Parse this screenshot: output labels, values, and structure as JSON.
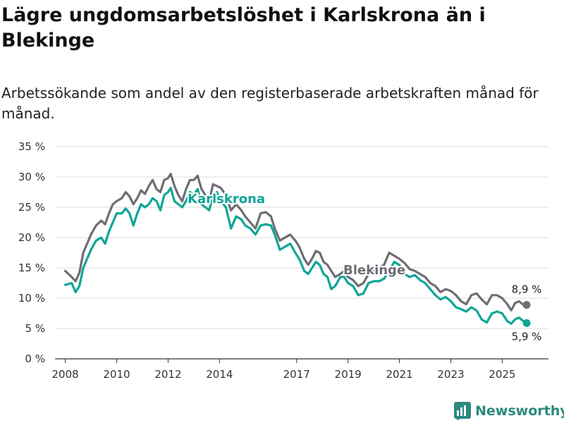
{
  "title": "Lägre ungdomsarbetslöshet i Karlskrona än i Blekinge",
  "subtitle": "Arbetssökande som andel av den registerbaserade arbetskraften månad för månad.",
  "brand": {
    "name": "Newsworthy",
    "color": "#2b8a7d"
  },
  "colors": {
    "karlskrona": "#0fa596",
    "blekinge": "#6e6d74",
    "grid": "#dcdcdc",
    "axis": "#333333"
  },
  "chart_data": {
    "type": "line",
    "title": "Lägre ungdomsarbetslöshet i Karlskrona än i Blekinge",
    "xlabel": "",
    "ylabel": "",
    "ylim": [
      0,
      35
    ],
    "yticks": [
      0,
      5,
      10,
      15,
      20,
      25,
      30,
      35
    ],
    "ytick_labels": [
      "0 %",
      "5 %",
      "10 %",
      "15 %",
      "20 %",
      "25 %",
      "30 %",
      "35 %"
    ],
    "xlim": [
      2007.6,
      2026.8
    ],
    "xticks": [
      2008,
      2010,
      2012,
      2014,
      2017,
      2019,
      2021,
      2023,
      2025
    ],
    "xtick_labels": [
      "2008",
      "2010",
      "2012",
      "2014",
      "2017",
      "2019",
      "2021",
      "2023",
      "2025"
    ],
    "grid": true,
    "series": [
      {
        "name": "Blekinge",
        "label": "Blekinge",
        "end_label": "8,9 %",
        "points": [
          [
            2008.0,
            14.5
          ],
          [
            2008.25,
            13.5
          ],
          [
            2008.4,
            12.8
          ],
          [
            2008.55,
            14.2
          ],
          [
            2008.7,
            17.5
          ],
          [
            2008.9,
            19.5
          ],
          [
            2009.0,
            20.5
          ],
          [
            2009.2,
            22.0
          ],
          [
            2009.4,
            22.8
          ],
          [
            2009.55,
            22.2
          ],
          [
            2009.7,
            24.0
          ],
          [
            2009.85,
            25.5
          ],
          [
            2010.0,
            26.0
          ],
          [
            2010.2,
            26.5
          ],
          [
            2010.35,
            27.5
          ],
          [
            2010.5,
            26.8
          ],
          [
            2010.65,
            25.5
          ],
          [
            2010.8,
            26.5
          ],
          [
            2010.95,
            27.8
          ],
          [
            2011.1,
            27.2
          ],
          [
            2011.25,
            28.5
          ],
          [
            2011.4,
            29.5
          ],
          [
            2011.55,
            28.0
          ],
          [
            2011.7,
            27.5
          ],
          [
            2011.85,
            29.5
          ],
          [
            2012.0,
            29.8
          ],
          [
            2012.1,
            30.5
          ],
          [
            2012.25,
            28.5
          ],
          [
            2012.4,
            27.0
          ],
          [
            2012.55,
            26.0
          ],
          [
            2012.7,
            28.0
          ],
          [
            2012.85,
            29.5
          ],
          [
            2013.0,
            29.5
          ],
          [
            2013.15,
            30.2
          ],
          [
            2013.3,
            28.0
          ],
          [
            2013.45,
            27.0
          ],
          [
            2013.6,
            26.0
          ],
          [
            2013.75,
            28.8
          ],
          [
            2013.9,
            28.5
          ],
          [
            2014.05,
            28.2
          ],
          [
            2014.25,
            27.0
          ],
          [
            2014.45,
            24.5
          ],
          [
            2014.65,
            25.5
          ],
          [
            2014.85,
            24.5
          ],
          [
            2015.0,
            23.5
          ],
          [
            2015.2,
            22.5
          ],
          [
            2015.4,
            21.5
          ],
          [
            2015.6,
            24.0
          ],
          [
            2015.8,
            24.2
          ],
          [
            2016.0,
            23.5
          ],
          [
            2016.15,
            21.5
          ],
          [
            2016.35,
            19.5
          ],
          [
            2016.55,
            20.0
          ],
          [
            2016.75,
            20.5
          ],
          [
            2016.95,
            19.5
          ],
          [
            2017.1,
            18.5
          ],
          [
            2017.3,
            16.5
          ],
          [
            2017.45,
            15.5
          ],
          [
            2017.6,
            16.5
          ],
          [
            2017.75,
            17.8
          ],
          [
            2017.9,
            17.5
          ],
          [
            2018.05,
            16.0
          ],
          [
            2018.2,
            15.5
          ],
          [
            2018.35,
            14.5
          ],
          [
            2018.5,
            13.5
          ],
          [
            2018.7,
            14.0
          ],
          [
            2018.85,
            14.5
          ],
          [
            2019.0,
            13.5
          ],
          [
            2019.2,
            13.0
          ],
          [
            2019.4,
            12.0
          ],
          [
            2019.6,
            12.5
          ],
          [
            2019.8,
            14.0
          ],
          [
            2020.0,
            14.5
          ],
          [
            2020.2,
            15.0
          ],
          [
            2020.4,
            15.5
          ],
          [
            2020.6,
            17.5
          ],
          [
            2020.8,
            17.0
          ],
          [
            2021.0,
            16.5
          ],
          [
            2021.2,
            15.8
          ],
          [
            2021.4,
            14.8
          ],
          [
            2021.6,
            14.5
          ],
          [
            2021.8,
            14.0
          ],
          [
            2022.0,
            13.5
          ],
          [
            2022.2,
            12.5
          ],
          [
            2022.4,
            12.0
          ],
          [
            2022.6,
            11.0
          ],
          [
            2022.8,
            11.5
          ],
          [
            2023.0,
            11.2
          ],
          [
            2023.2,
            10.5
          ],
          [
            2023.4,
            9.5
          ],
          [
            2023.6,
            9.0
          ],
          [
            2023.8,
            10.5
          ],
          [
            2024.0,
            10.8
          ],
          [
            2024.2,
            9.8
          ],
          [
            2024.4,
            9.0
          ],
          [
            2024.6,
            10.5
          ],
          [
            2024.8,
            10.5
          ],
          [
            2025.0,
            10.0
          ],
          [
            2025.2,
            9.0
          ],
          [
            2025.35,
            8.0
          ],
          [
            2025.5,
            9.2
          ],
          [
            2025.65,
            9.5
          ],
          [
            2025.8,
            9.0
          ],
          [
            2025.95,
            8.9
          ]
        ]
      },
      {
        "name": "Karlskrona",
        "label": "Karlskrona",
        "end_label": "5,9 %",
        "points": [
          [
            2008.0,
            12.2
          ],
          [
            2008.25,
            12.5
          ],
          [
            2008.4,
            11.0
          ],
          [
            2008.55,
            12.0
          ],
          [
            2008.7,
            15.0
          ],
          [
            2008.9,
            17.0
          ],
          [
            2009.0,
            18.0
          ],
          [
            2009.2,
            19.5
          ],
          [
            2009.4,
            20.0
          ],
          [
            2009.55,
            19.0
          ],
          [
            2009.7,
            21.0
          ],
          [
            2009.85,
            22.5
          ],
          [
            2010.0,
            24.0
          ],
          [
            2010.2,
            24.0
          ],
          [
            2010.35,
            24.8
          ],
          [
            2010.5,
            24.0
          ],
          [
            2010.65,
            22.0
          ],
          [
            2010.8,
            24.0
          ],
          [
            2010.95,
            25.5
          ],
          [
            2011.1,
            25.0
          ],
          [
            2011.25,
            25.5
          ],
          [
            2011.4,
            26.5
          ],
          [
            2011.55,
            26.0
          ],
          [
            2011.7,
            24.5
          ],
          [
            2011.85,
            27.0
          ],
          [
            2012.0,
            27.5
          ],
          [
            2012.1,
            28.2
          ],
          [
            2012.25,
            26.0
          ],
          [
            2012.4,
            25.5
          ],
          [
            2012.55,
            25.0
          ],
          [
            2012.7,
            26.0
          ],
          [
            2012.85,
            27.5
          ],
          [
            2013.0,
            27.0
          ],
          [
            2013.15,
            28.0
          ],
          [
            2013.3,
            25.5
          ],
          [
            2013.45,
            25.0
          ],
          [
            2013.6,
            24.5
          ],
          [
            2013.75,
            27.0
          ],
          [
            2013.9,
            27.5
          ],
          [
            2014.05,
            26.0
          ],
          [
            2014.25,
            25.0
          ],
          [
            2014.45,
            21.5
          ],
          [
            2014.65,
            23.5
          ],
          [
            2014.85,
            23.0
          ],
          [
            2015.0,
            22.0
          ],
          [
            2015.2,
            21.5
          ],
          [
            2015.4,
            20.5
          ],
          [
            2015.6,
            22.0
          ],
          [
            2015.8,
            22.2
          ],
          [
            2016.0,
            22.0
          ],
          [
            2016.15,
            20.5
          ],
          [
            2016.35,
            18.0
          ],
          [
            2016.55,
            18.5
          ],
          [
            2016.75,
            19.0
          ],
          [
            2016.95,
            17.5
          ],
          [
            2017.1,
            16.5
          ],
          [
            2017.3,
            14.5
          ],
          [
            2017.45,
            14.0
          ],
          [
            2017.6,
            15.0
          ],
          [
            2017.75,
            16.0
          ],
          [
            2017.9,
            15.5
          ],
          [
            2018.05,
            14.0
          ],
          [
            2018.2,
            13.5
          ],
          [
            2018.35,
            11.5
          ],
          [
            2018.5,
            12.0
          ],
          [
            2018.7,
            13.5
          ],
          [
            2018.85,
            13.5
          ],
          [
            2019.0,
            12.5
          ],
          [
            2019.2,
            12.0
          ],
          [
            2019.4,
            10.5
          ],
          [
            2019.6,
            10.8
          ],
          [
            2019.8,
            12.5
          ],
          [
            2020.0,
            12.8
          ],
          [
            2020.2,
            12.8
          ],
          [
            2020.4,
            13.2
          ],
          [
            2020.6,
            14.5
          ],
          [
            2020.8,
            16.0
          ],
          [
            2021.0,
            15.5
          ],
          [
            2021.2,
            14.0
          ],
          [
            2021.4,
            13.5
          ],
          [
            2021.6,
            13.8
          ],
          [
            2021.8,
            13.0
          ],
          [
            2022.0,
            12.5
          ],
          [
            2022.2,
            11.5
          ],
          [
            2022.4,
            10.5
          ],
          [
            2022.6,
            9.8
          ],
          [
            2022.8,
            10.2
          ],
          [
            2023.0,
            9.5
          ],
          [
            2023.2,
            8.5
          ],
          [
            2023.4,
            8.2
          ],
          [
            2023.6,
            7.8
          ],
          [
            2023.8,
            8.5
          ],
          [
            2024.0,
            8.0
          ],
          [
            2024.2,
            6.5
          ],
          [
            2024.4,
            6.0
          ],
          [
            2024.6,
            7.5
          ],
          [
            2024.8,
            7.8
          ],
          [
            2025.0,
            7.5
          ],
          [
            2025.2,
            6.2
          ],
          [
            2025.35,
            5.8
          ],
          [
            2025.5,
            6.5
          ],
          [
            2025.65,
            6.8
          ],
          [
            2025.8,
            6.3
          ],
          [
            2025.95,
            5.9
          ]
        ]
      }
    ]
  }
}
